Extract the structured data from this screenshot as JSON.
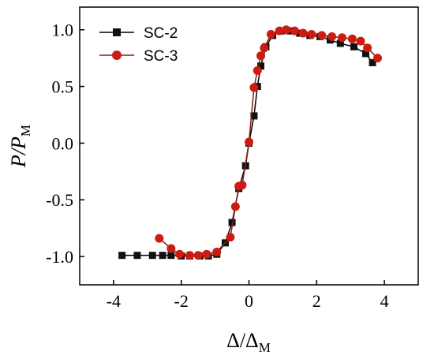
{
  "chart_data": {
    "type": "line",
    "xlabel": {
      "main": "Δ/Δ",
      "sub": "M"
    },
    "ylabel": {
      "main": "P/P",
      "sub": "M"
    },
    "xlim": [
      -5,
      5
    ],
    "ylim": [
      -1.25,
      1.2
    ],
    "x_ticks": [
      -4,
      -2,
      0,
      2,
      4
    ],
    "x_tick_labels": [
      "-4",
      "-2",
      "0",
      "2",
      "4"
    ],
    "y_ticks": [
      -1.0,
      -0.5,
      0.0,
      0.5,
      1.0
    ],
    "y_tick_labels": [
      "-1.0",
      "-0.5",
      "0.0",
      "0.5",
      "1.0"
    ],
    "legend_position": "top-left",
    "grid": false,
    "series": [
      {
        "name": "SC-2",
        "color": "#111111",
        "line_color": "#000000",
        "marker": "square",
        "points": [
          [
            -3.75,
            -0.99
          ],
          [
            -3.3,
            -0.99
          ],
          [
            -2.85,
            -0.99
          ],
          [
            -2.55,
            -0.99
          ],
          [
            -2.3,
            -0.99
          ],
          [
            -2.0,
            -0.995
          ],
          [
            -1.75,
            -0.995
          ],
          [
            -1.45,
            -0.995
          ],
          [
            -1.2,
            -0.995
          ],
          [
            -0.95,
            -0.98
          ],
          [
            -0.7,
            -0.88
          ],
          [
            -0.5,
            -0.7
          ],
          [
            -0.3,
            -0.4
          ],
          [
            -0.1,
            -0.2
          ],
          [
            0.0,
            0.0
          ],
          [
            0.15,
            0.24
          ],
          [
            0.25,
            0.5
          ],
          [
            0.35,
            0.68
          ],
          [
            0.5,
            0.85
          ],
          [
            0.7,
            0.95
          ],
          [
            0.95,
            0.99
          ],
          [
            1.2,
            0.99
          ],
          [
            1.5,
            0.97
          ],
          [
            1.8,
            0.95
          ],
          [
            2.1,
            0.94
          ],
          [
            2.4,
            0.91
          ],
          [
            2.7,
            0.88
          ],
          [
            3.1,
            0.85
          ],
          [
            3.45,
            0.79
          ],
          [
            3.65,
            0.71
          ]
        ]
      },
      {
        "name": "SC-3",
        "color": "#cc1c12",
        "line_color": "#8b1a10",
        "marker": "circle",
        "points": [
          [
            -2.65,
            -0.84
          ],
          [
            -2.3,
            -0.93
          ],
          [
            -2.05,
            -0.98
          ],
          [
            -1.75,
            -0.99
          ],
          [
            -1.5,
            -0.99
          ],
          [
            -1.25,
            -0.98
          ],
          [
            -0.95,
            -0.96
          ],
          [
            -0.55,
            -0.83
          ],
          [
            -0.4,
            -0.56
          ],
          [
            -0.3,
            -0.38
          ],
          [
            -0.2,
            -0.37
          ],
          [
            0.0,
            0.01
          ],
          [
            0.15,
            0.49
          ],
          [
            0.25,
            0.64
          ],
          [
            0.35,
            0.77
          ],
          [
            0.45,
            0.84
          ],
          [
            0.65,
            0.96
          ],
          [
            0.9,
            0.99
          ],
          [
            1.1,
            1.0
          ],
          [
            1.35,
            0.99
          ],
          [
            1.6,
            0.97
          ],
          [
            1.85,
            0.96
          ],
          [
            2.15,
            0.95
          ],
          [
            2.45,
            0.94
          ],
          [
            2.75,
            0.93
          ],
          [
            3.05,
            0.92
          ],
          [
            3.3,
            0.9
          ],
          [
            3.5,
            0.84
          ],
          [
            3.8,
            0.75
          ]
        ]
      }
    ]
  }
}
